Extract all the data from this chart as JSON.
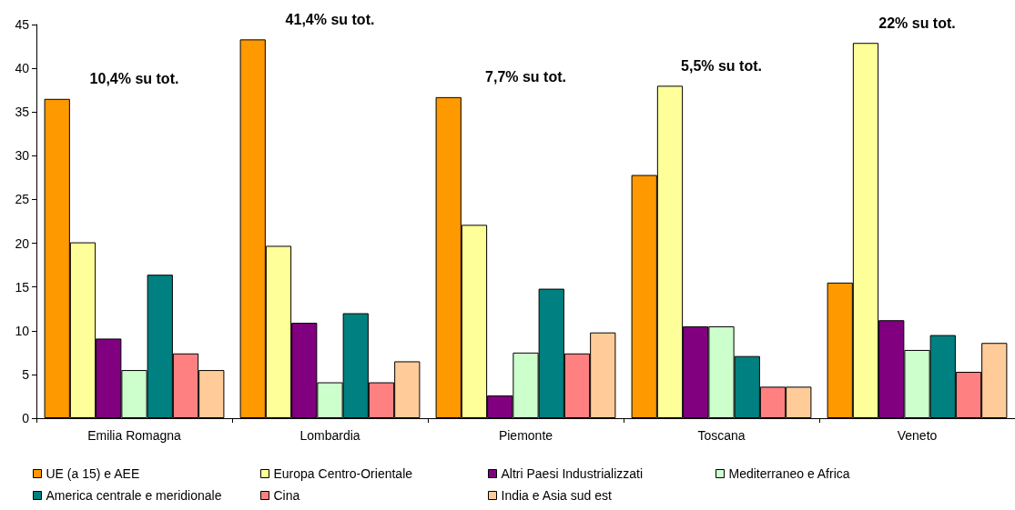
{
  "chart_data": {
    "type": "bar",
    "categories": [
      "Emilia Romagna",
      "Lombardia",
      "Piemonte",
      "Toscana",
      "Veneto"
    ],
    "series": [
      {
        "name": "UE (a 15) e AEE",
        "color": "#ff9900",
        "values": [
          36.5,
          43.3,
          36.7,
          27.8,
          15.5
        ]
      },
      {
        "name": "Europa Centro-Orientale",
        "color": "#ffff99",
        "values": [
          20.1,
          19.7,
          22.1,
          38.0,
          42.9
        ]
      },
      {
        "name": "Altri Paesi Industrializzati",
        "color": "#800080",
        "values": [
          9.1,
          10.9,
          2.6,
          10.5,
          11.2
        ]
      },
      {
        "name": "Mediterraneo e Africa",
        "color": "#ccffcc",
        "values": [
          5.5,
          4.1,
          7.5,
          10.5,
          7.8
        ]
      },
      {
        "name": "America centrale e meridionale",
        "color": "#008080",
        "values": [
          16.4,
          12.0,
          14.8,
          7.1,
          9.5
        ]
      },
      {
        "name": "Cina",
        "color": "#ff8080",
        "values": [
          7.4,
          4.1,
          7.4,
          3.6,
          5.3
        ]
      },
      {
        "name": "India e Asia sud est",
        "color": "#ffcc99",
        "values": [
          5.5,
          6.5,
          9.8,
          3.6,
          8.6
        ]
      }
    ],
    "ylim": [
      0,
      45
    ],
    "yticks": [
      0,
      5,
      10,
      15,
      20,
      25,
      30,
      35,
      40,
      45
    ],
    "annotations": [
      "10,4% su tot.",
      "41,4% su tot.",
      "7,7% su tot.",
      "5,5% su tot.",
      "22% su tot."
    ],
    "grid": false,
    "legend": "bottom"
  }
}
